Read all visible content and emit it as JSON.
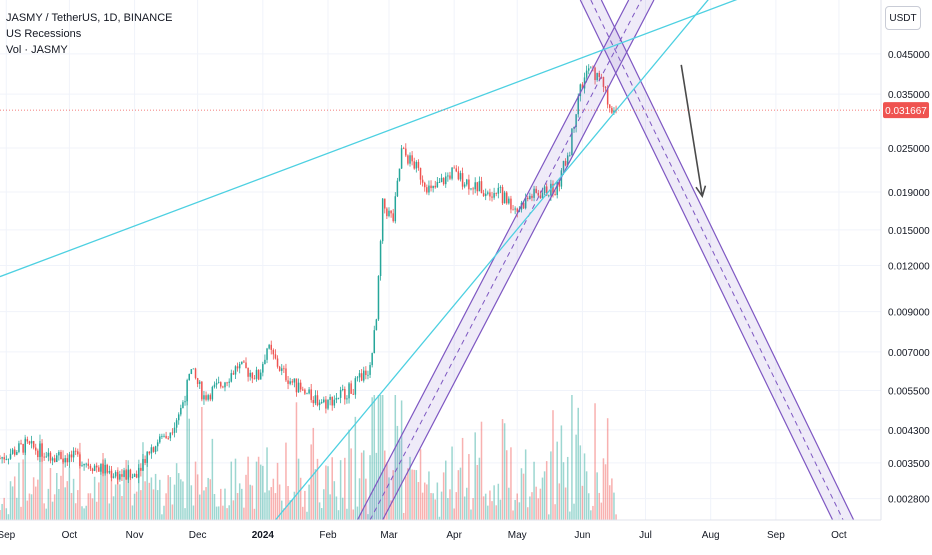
{
  "chart_data": {
    "type": "candlestick",
    "title": "JASMY / TetherUS, 1D, BINANCE",
    "indicators": [
      "US Recessions",
      "Vol · JASMY"
    ],
    "y_scale": "log",
    "y_unit": "USDT",
    "ylim": [
      0.00245,
      0.063
    ],
    "y_ticks": [
      "0.045000",
      "0.035000",
      "0.025000",
      "0.019000",
      "0.015000",
      "0.012000",
      "0.009000",
      "0.007000",
      "0.005500",
      "0.004300",
      "0.003500",
      "0.002800"
    ],
    "last_price": "0.031667",
    "x_ticks": [
      "Sep",
      "Oct",
      "Nov",
      "Dec",
      "2024",
      "Feb",
      "Mar",
      "Apr",
      "May",
      "Jun",
      "Jul",
      "Aug",
      "Sep",
      "Oct"
    ],
    "xlim": [
      "2023-08-29",
      "2024-10-21"
    ],
    "price_path": [
      [
        "2023-08-29",
        0.0036
      ],
      [
        "2023-09-10",
        0.0039
      ],
      [
        "2023-09-22",
        0.0037
      ],
      [
        "2023-10-05",
        0.0036
      ],
      [
        "2023-10-20",
        0.0033
      ],
      [
        "2023-10-31",
        0.0032
      ],
      [
        "2023-11-08",
        0.0038
      ],
      [
        "2023-11-18",
        0.0043
      ],
      [
        "2023-11-23",
        0.0049
      ],
      [
        "2023-11-28",
        0.0062
      ],
      [
        "2023-12-04",
        0.0053
      ],
      [
        "2023-12-12",
        0.0057
      ],
      [
        "2023-12-20",
        0.0064
      ],
      [
        "2023-12-30",
        0.006
      ],
      [
        "2024-01-03",
        0.0072
      ],
      [
        "2024-01-10",
        0.0062
      ],
      [
        "2024-01-20",
        0.0054
      ],
      [
        "2024-01-31",
        0.0051
      ],
      [
        "2024-02-13",
        0.0056
      ],
      [
        "2024-02-21",
        0.0064
      ],
      [
        "2024-02-24",
        0.0085
      ],
      [
        "2024-02-27",
        0.0175
      ],
      [
        "2024-03-03",
        0.016
      ],
      [
        "2024-03-07",
        0.0245
      ],
      [
        "2024-03-13",
        0.0225
      ],
      [
        "2024-03-21",
        0.019
      ],
      [
        "2024-03-31",
        0.0215
      ],
      [
        "2024-04-05",
        0.0205
      ],
      [
        "2024-04-13",
        0.0195
      ],
      [
        "2024-04-22",
        0.019
      ],
      [
        "2024-05-01",
        0.017
      ],
      [
        "2024-05-07",
        0.0185
      ],
      [
        "2024-05-20",
        0.0195
      ],
      [
        "2024-05-26",
        0.025
      ],
      [
        "2024-05-30",
        0.035
      ],
      [
        "2024-06-04",
        0.041
      ],
      [
        "2024-06-10",
        0.038
      ],
      [
        "2024-06-14",
        0.033
      ],
      [
        "2024-06-17",
        0.0316
      ]
    ],
    "trendlines": [
      {
        "name": "upper-trendline",
        "color": "#4dd0e1",
        "points": [
          [
            "2023-08-29",
            0.0112
          ],
          [
            "2024-03-03",
            0.0282
          ]
        ]
      },
      {
        "name": "lower-trendline",
        "color": "#4dd0e1",
        "points": [
          [
            "2024-01-07",
            0.00245
          ],
          [
            "2024-06-17",
            0.0316
          ]
        ]
      }
    ],
    "channels": [
      {
        "name": "rising-channel",
        "color": "#7e57c2",
        "start": [
          "2024-02-21",
          0.00245
        ],
        "end": [
          "2024-06-29",
          0.063
        ],
        "offset_days": 6
      },
      {
        "name": "falling-channel",
        "color": "#7e57c2",
        "start": [
          "2024-06-05",
          0.063
        ],
        "end": [
          "2024-10-03",
          0.00245
        ],
        "offset_days": 5
      }
    ],
    "forecast_arrow": {
      "from": [
        "2024-07-18",
        0.042
      ],
      "to": [
        "2024-07-28",
        0.0185
      ],
      "color": "#4a4a4a"
    },
    "colors": {
      "up": "#26a69a",
      "down": "#ef5350",
      "price_line": "#ef5350",
      "trendline": "#4dd0e1",
      "channel": "#7e57c2",
      "background": "#ffffff",
      "axis_text": "#131722"
    }
  }
}
